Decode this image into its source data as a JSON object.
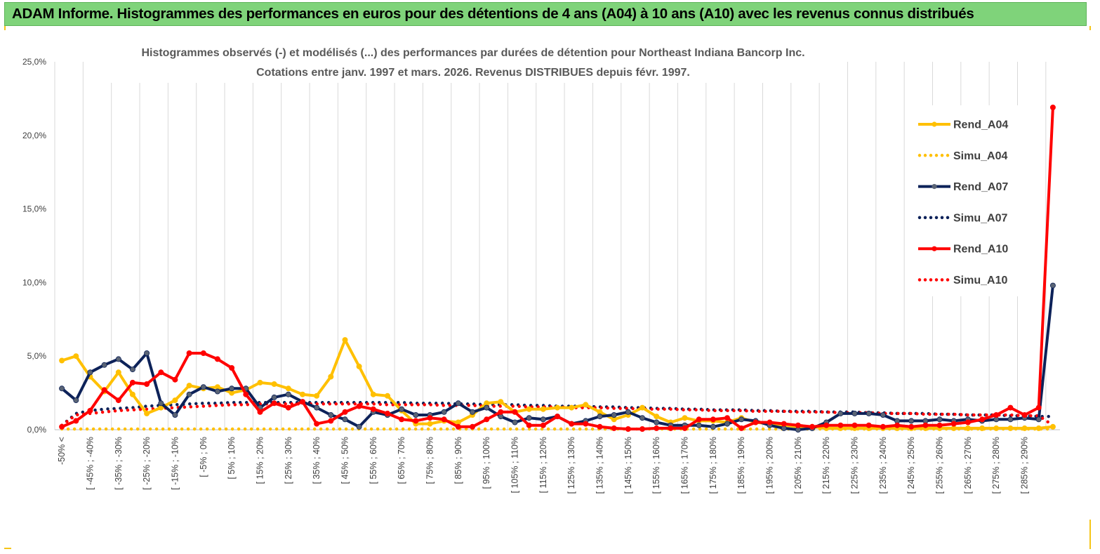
{
  "banner": {
    "title": "ADAM Informe. Histogrammes des performances en euros pour des détentions de 4 ans (A04) à 10 ans (A10) avec les revenus connus distribués"
  },
  "colors": {
    "banner_bg": "#7fd37a",
    "frame": "#f5c518",
    "grid": "#d9d9d9",
    "A04": "#ffc000",
    "A07": "#0d2259",
    "A07_marker": "#5a6475",
    "A10": "#ff0000"
  },
  "chart_data": {
    "type": "line",
    "title": "Histogrammes observés (-) et modélisés (...) des performances par durées de détention pour Northeast Indiana Bancorp Inc.",
    "subtitle": "Cotations entre janv. 1997 et mars. 2026. Revenus DISTRIBUES depuis févr. 1997.",
    "xlabel": "",
    "ylabel": "",
    "ylim": [
      0,
      25
    ],
    "y_ticks": [
      "0,0%",
      "5,0%",
      "10,0%",
      "15,0%",
      "20,0%",
      "25,0%"
    ],
    "grid": "vertical",
    "legend_position": "right",
    "x_labels": [
      "-50% <",
      "[ -45% ; -40%",
      "[ -35% ; -30%",
      "[ -25% ; -20%",
      "[ -15% ; -10%",
      "[ -5% ; 0%",
      "[ 5% ; 10%",
      "[ 15% ; 20%",
      "[ 25% ; 30%",
      "[ 35% ; 40%",
      "[ 45% ; 50%",
      "[ 55% ; 60%",
      "[ 65% ; 70%",
      "[ 75% ; 80%",
      "[ 85% ; 90%",
      "[ 95% ; 100%",
      "[ 105% ; 110%",
      "[ 115% ; 120%",
      "[ 125% ; 130%",
      "[ 135% ; 140%",
      "[ 145% ; 150%",
      "[ 155% ; 160%",
      "[ 165% ; 170%",
      "[ 175% ; 180%",
      "[ 185% ; 190%",
      "[ 195% ; 200%",
      "[ 205% ; 210%",
      "[ 215% ; 220%",
      "[ 225% ; 230%",
      "[ 235% ; 240%",
      "[ 245% ; 250%",
      "[ 255% ; 260%",
      "[ 265% ; 270%",
      "[ 275% ; 280%",
      "[ 285% ; 290%"
    ],
    "series": [
      {
        "name": "Rend_A04",
        "style": "solid",
        "color": "#ffc000",
        "values": [
          4.7,
          5.0,
          3.6,
          2.6,
          3.9,
          2.4,
          1.1,
          1.5,
          2.0,
          3.0,
          2.8,
          2.9,
          2.5,
          2.7,
          3.2,
          3.1,
          2.8,
          2.4,
          2.3,
          3.6,
          6.1,
          4.3,
          2.4,
          2.3,
          1.3,
          0.4,
          0.4,
          0.6,
          0.5,
          1.0,
          1.8,
          1.9,
          1.2,
          1.4,
          1.4,
          1.5,
          1.5,
          1.7,
          1.2,
          0.7,
          1.0,
          1.5,
          0.9,
          0.5,
          0.8,
          0.6,
          0.6,
          0.5,
          0.8,
          0.5,
          0.4,
          0.3,
          0.2,
          0.2,
          0.1,
          0.1,
          0.1,
          0.1,
          0.1,
          0.1,
          0.1,
          0.1,
          0.1,
          0.1,
          0.1,
          0.1,
          0.1,
          0.1,
          0.1,
          0.1,
          0.2
        ]
      },
      {
        "name": "Simu_A04",
        "style": "dotted",
        "color": "#ffc000",
        "values": [
          0.05,
          0.05,
          0.05,
          0.05,
          0.05,
          0.05,
          0.05,
          0.05,
          0.05,
          0.05,
          0.05,
          0.05,
          0.05,
          0.05,
          0.05,
          0.05,
          0.05,
          0.05,
          0.05,
          0.05,
          0.05,
          0.05,
          0.05,
          0.05,
          0.05,
          0.05,
          0.05,
          0.05,
          0.05,
          0.05,
          0.05,
          0.05,
          0.05,
          0.05,
          0.05,
          0.05,
          0.05,
          0.05,
          0.05,
          0.05,
          0.05,
          0.05,
          0.05,
          0.05,
          0.05,
          0.05,
          0.05,
          0.05,
          0.05,
          0.05,
          0.05,
          0.05,
          0.05,
          0.05,
          0.05,
          0.05,
          0.05,
          0.05,
          0.05,
          0.05,
          0.05,
          0.05,
          0.05,
          0.05,
          0.05,
          0.05,
          0.05,
          0.05,
          0.05,
          0.05,
          0.05
        ]
      },
      {
        "name": "Rend_A07",
        "style": "solid",
        "color": "#0d2259",
        "values": [
          2.8,
          2.0,
          3.9,
          4.4,
          4.8,
          4.1,
          5.2,
          1.8,
          1.0,
          2.4,
          2.9,
          2.6,
          2.8,
          2.8,
          1.5,
          2.2,
          2.4,
          1.9,
          1.5,
          1.0,
          0.7,
          0.2,
          1.2,
          1.0,
          1.4,
          1.0,
          1.0,
          1.2,
          1.8,
          1.2,
          1.5,
          0.9,
          0.5,
          0.8,
          0.7,
          0.9,
          0.4,
          0.6,
          0.9,
          1.0,
          1.2,
          0.8,
          0.5,
          0.3,
          0.3,
          0.3,
          0.2,
          0.4,
          0.7,
          0.6,
          0.3,
          0.1,
          0.0,
          0.1,
          0.5,
          1.1,
          1.1,
          1.1,
          1.0,
          0.6,
          0.6,
          0.6,
          0.7,
          0.6,
          0.7,
          0.6,
          0.7,
          0.7,
          0.8,
          0.7,
          9.8
        ]
      },
      {
        "name": "Simu_A07",
        "style": "dotted",
        "color": "#0d2259",
        "values": [
          0.3,
          1.1,
          1.3,
          1.4,
          1.45,
          1.5,
          1.6,
          1.65,
          1.7,
          1.75,
          1.8,
          1.8,
          1.85,
          1.85,
          1.85,
          1.85,
          1.85,
          1.85,
          1.85,
          1.85,
          1.85,
          1.85,
          1.85,
          1.85,
          1.85,
          1.8,
          1.8,
          1.8,
          1.75,
          1.75,
          1.7,
          1.7,
          1.7,
          1.65,
          1.65,
          1.6,
          1.6,
          1.6,
          1.55,
          1.55,
          1.5,
          1.5,
          1.45,
          1.45,
          1.4,
          1.4,
          1.35,
          1.35,
          1.35,
          1.3,
          1.3,
          1.25,
          1.25,
          1.25,
          1.2,
          1.2,
          1.2,
          1.15,
          1.15,
          1.1,
          1.1,
          1.1,
          1.05,
          1.05,
          1.0,
          1.0,
          1.0,
          0.95,
          0.95,
          0.9,
          0.9
        ]
      },
      {
        "name": "Rend_A10",
        "style": "solid",
        "color": "#ff0000",
        "values": [
          0.2,
          0.6,
          1.3,
          2.7,
          2.0,
          3.2,
          3.1,
          3.9,
          3.4,
          5.2,
          5.2,
          4.8,
          4.2,
          2.4,
          1.2,
          1.8,
          1.5,
          1.9,
          0.4,
          0.6,
          1.2,
          1.6,
          1.4,
          1.1,
          0.7,
          0.6,
          0.8,
          0.7,
          0.2,
          0.2,
          0.7,
          1.2,
          1.2,
          0.3,
          0.3,
          0.9,
          0.4,
          0.4,
          0.2,
          0.1,
          0.05,
          0.05,
          0.1,
          0.1,
          0.1,
          0.7,
          0.7,
          0.8,
          0.1,
          0.5,
          0.5,
          0.4,
          0.3,
          0.2,
          0.3,
          0.3,
          0.3,
          0.3,
          0.2,
          0.3,
          0.2,
          0.3,
          0.3,
          0.4,
          0.5,
          0.7,
          1.0,
          1.5,
          1.0,
          1.5,
          21.9
        ]
      },
      {
        "name": "Simu_A10",
        "style": "dotted",
        "color": "#ff0000",
        "values": [
          0.3,
          1.0,
          1.1,
          1.2,
          1.3,
          1.35,
          1.4,
          1.45,
          1.5,
          1.55,
          1.6,
          1.65,
          1.7,
          1.7,
          1.75,
          1.75,
          1.75,
          1.75,
          1.75,
          1.75,
          1.75,
          1.75,
          1.75,
          1.7,
          1.7,
          1.7,
          1.7,
          1.65,
          1.65,
          1.65,
          1.6,
          1.6,
          1.6,
          1.55,
          1.55,
          1.55,
          1.5,
          1.5,
          1.5,
          1.45,
          1.45,
          1.4,
          1.4,
          1.4,
          1.35,
          1.35,
          1.3,
          1.3,
          1.3,
          1.25,
          1.25,
          1.25,
          1.2,
          1.2,
          1.2,
          1.15,
          1.15,
          1.15,
          1.1,
          1.1,
          1.1,
          1.05,
          1.05,
          1.05,
          1.0,
          1.0,
          1.0,
          1.0,
          0.95,
          0.95,
          0.3
        ]
      }
    ]
  }
}
